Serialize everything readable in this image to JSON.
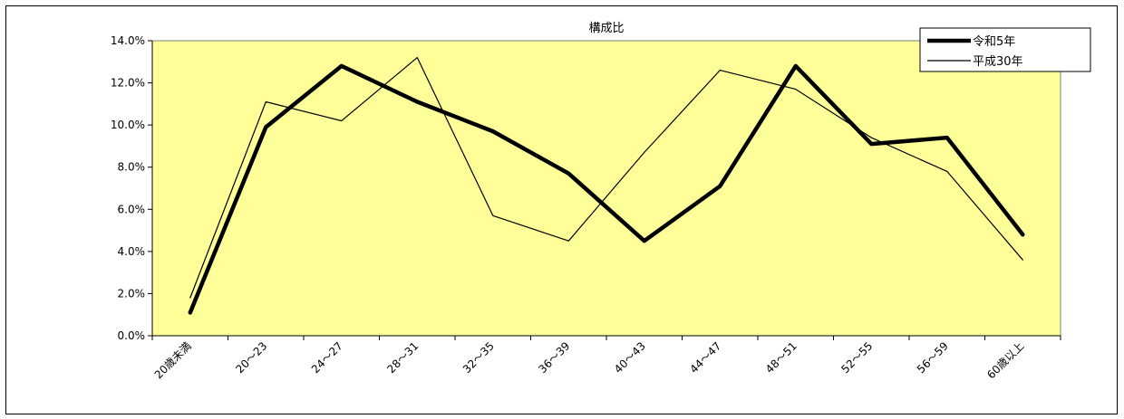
{
  "chart_data": {
    "type": "line",
    "title": "構成比",
    "categories": [
      "20歳未満",
      "20～23",
      "24～27",
      "28～31",
      "32～35",
      "36～39",
      "40～43",
      "44～47",
      "48～51",
      "52～55",
      "56～59",
      "60歳以上"
    ],
    "series": [
      {
        "name": "令和5年",
        "values": [
          1.1,
          9.9,
          12.8,
          11.1,
          9.7,
          7.7,
          4.5,
          7.1,
          12.8,
          9.1,
          9.4,
          4.8
        ],
        "color": "#000000",
        "style": "thick"
      },
      {
        "name": "平成30年",
        "values": [
          1.8,
          11.1,
          10.2,
          13.2,
          5.7,
          4.5,
          8.7,
          12.6,
          11.7,
          9.4,
          7.8,
          3.6
        ],
        "color": "#000000",
        "style": "thin"
      }
    ],
    "ylim": [
      0,
      14
    ],
    "yticks": [
      0,
      2,
      4,
      6,
      8,
      10,
      12,
      14
    ],
    "ytick_labels": [
      "0.0%",
      "2.0%",
      "4.0%",
      "6.0%",
      "8.0%",
      "10.0%",
      "12.0%",
      "14.0%"
    ],
    "xlabel": "",
    "ylabel": "",
    "plot_background": "#ffff99",
    "grid": false,
    "legend_position": "top-right"
  }
}
